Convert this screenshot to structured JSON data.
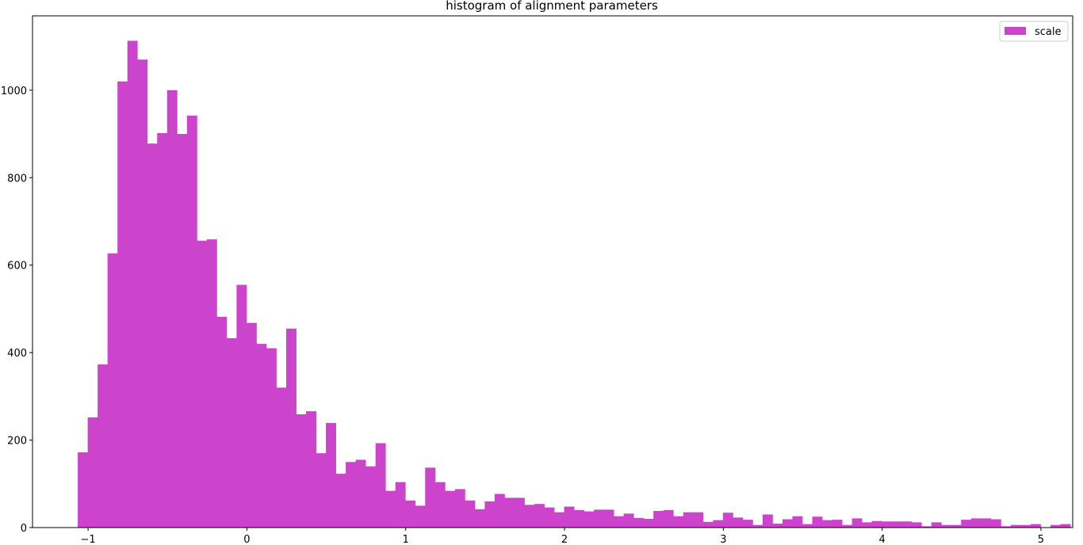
{
  "chart_data": {
    "type": "bar",
    "title": "histogram of alignment parameters",
    "xlabel": "",
    "ylabel": "",
    "xlim": [
      -1.35,
      5.2
    ],
    "ylim": [
      0,
      1170
    ],
    "x_ticks": [
      -1,
      0,
      1,
      2,
      3,
      4,
      5
    ],
    "x_tick_labels": [
      "−1",
      "0",
      "1",
      "2",
      "3",
      "4",
      "5"
    ],
    "y_ticks": [
      0,
      200,
      400,
      600,
      800,
      1000
    ],
    "y_tick_labels": [
      "0",
      "200",
      "400",
      "600",
      "800",
      "1000"
    ],
    "grid": false,
    "legend_position": "top-right",
    "bin_start": -1.065,
    "bin_width": 0.0625,
    "series": [
      {
        "name": "scale",
        "color": "#cc44cc",
        "values": [
          172,
          252,
          373,
          627,
          1020,
          1113,
          1070,
          878,
          902,
          1000,
          900,
          942,
          656,
          659,
          482,
          433,
          555,
          468,
          420,
          410,
          320,
          455,
          259,
          266,
          170,
          239,
          123,
          150,
          155,
          140,
          193,
          84,
          104,
          62,
          50,
          137,
          104,
          84,
          88,
          62,
          42,
          60,
          77,
          68,
          68,
          52,
          54,
          46,
          35,
          48,
          40,
          37,
          41,
          41,
          26,
          32,
          22,
          20,
          38,
          40,
          26,
          35,
          35,
          13,
          17,
          34,
          23,
          18,
          6,
          30,
          9,
          19,
          26,
          8,
          25,
          17,
          18,
          6,
          21,
          12,
          15,
          14,
          14,
          14,
          12,
          3,
          12,
          6,
          6,
          18,
          21,
          21,
          19,
          3,
          6,
          6,
          8,
          0,
          6,
          8
        ]
      }
    ]
  }
}
